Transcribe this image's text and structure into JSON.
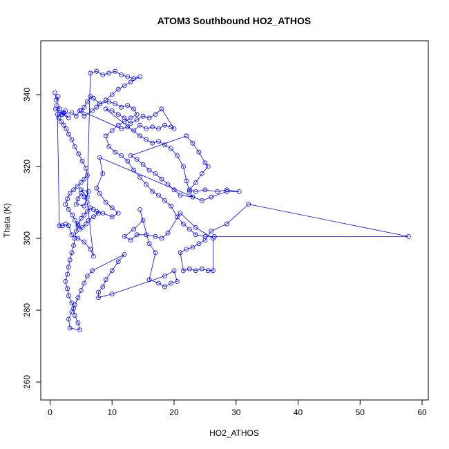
{
  "chart_data": {
    "type": "scatter",
    "title": "ATOM3 Southbound HO2_ATHOS",
    "xlabel": "HO2_ATHOS",
    "ylabel": "Theta (K)",
    "xlim": [
      -1.5,
      61
    ],
    "ylim": [
      255,
      355
    ],
    "xticks": [
      0,
      10,
      20,
      30,
      40,
      50,
      60
    ],
    "yticks": [
      260,
      280,
      300,
      320,
      340
    ],
    "grid": false,
    "legend": "none",
    "point_style": "open-circle",
    "connect_points": true,
    "series": [
      {
        "color": "#0000ff",
        "points": [
          [
            0.8,
            340.5
          ],
          [
            1.0,
            338.5
          ],
          [
            1.3,
            339.5
          ],
          [
            1.1,
            337.0
          ],
          [
            1.6,
            336.0
          ],
          [
            0.9,
            336.0
          ],
          [
            1.5,
            335.0
          ],
          [
            2.5,
            335.5
          ],
          [
            2.0,
            334.5
          ],
          [
            3.0,
            333.5
          ],
          [
            2.2,
            335.0
          ],
          [
            1.8,
            334.5
          ],
          [
            3.5,
            335.0
          ],
          [
            4.2,
            334.0
          ],
          [
            4.8,
            335.5
          ],
          [
            5.5,
            334.0
          ],
          [
            6.8,
            335.5
          ],
          [
            7.5,
            336.5
          ],
          [
            8.0,
            337.5
          ],
          [
            9.5,
            338.0
          ],
          [
            10.5,
            337.5
          ],
          [
            11.5,
            336.5
          ],
          [
            12.5,
            337.0
          ],
          [
            13.5,
            336.0
          ],
          [
            14.0,
            334.5
          ],
          [
            13.0,
            333.5
          ],
          [
            12.0,
            332.5
          ],
          [
            11.0,
            331.5
          ],
          [
            10.0,
            330.0
          ],
          [
            9.0,
            328.5
          ],
          [
            9.5,
            325.5
          ],
          [
            10.5,
            324.0
          ],
          [
            11.5,
            323.0
          ],
          [
            12.5,
            321.5
          ],
          [
            13.5,
            319.0
          ],
          [
            14.5,
            317.0
          ],
          [
            15.5,
            315.0
          ],
          [
            16.5,
            313.0
          ],
          [
            17.5,
            312.0
          ],
          [
            18.5,
            310.5
          ],
          [
            19.5,
            309.0
          ],
          [
            20.5,
            306.0
          ],
          [
            21.5,
            304.0
          ],
          [
            22.5,
            302.5
          ],
          [
            23.5,
            301.0
          ],
          [
            25.0,
            300.5
          ],
          [
            26.5,
            300.5
          ],
          [
            57.8,
            300.5
          ],
          [
            32.0,
            309.5
          ],
          [
            28.5,
            304.0
          ],
          [
            26.0,
            302.0
          ],
          [
            25.0,
            299.5
          ],
          [
            24.0,
            298.5
          ],
          [
            23.0,
            297.5
          ],
          [
            22.0,
            297.0
          ],
          [
            21.0,
            296.0
          ],
          [
            21.5,
            291.0
          ],
          [
            22.5,
            291.5
          ],
          [
            23.5,
            291.0
          ],
          [
            24.5,
            291.5
          ],
          [
            25.5,
            291.0
          ],
          [
            26.3,
            291.0
          ],
          [
            26.3,
            300.0
          ],
          [
            23.5,
            303.0
          ],
          [
            21.0,
            307.0
          ],
          [
            19.0,
            301.5
          ],
          [
            18.0,
            300.0
          ],
          [
            17.0,
            300.5
          ],
          [
            15.5,
            301.0
          ],
          [
            14.0,
            301.0
          ],
          [
            13.0,
            299.5
          ],
          [
            12.0,
            300.5
          ],
          [
            13.5,
            302.5
          ],
          [
            15.0,
            305.0
          ],
          [
            14.5,
            308.0
          ],
          [
            16.0,
            298.5
          ],
          [
            17.0,
            296.0
          ],
          [
            16.0,
            288.5
          ],
          [
            17.5,
            287.5
          ],
          [
            18.5,
            286.5
          ],
          [
            19.5,
            287.5
          ],
          [
            20.5,
            288.0
          ],
          [
            20.0,
            291.0
          ],
          [
            18.5,
            289.5
          ],
          [
            10.0,
            284.5
          ],
          [
            7.8,
            283.5
          ],
          [
            7.8,
            285.0
          ],
          [
            8.5,
            286.5
          ],
          [
            9.0,
            288.5
          ],
          [
            10.0,
            291.0
          ],
          [
            11.0,
            293.5
          ],
          [
            12.0,
            295.5
          ],
          [
            6.8,
            291.0
          ],
          [
            6.0,
            289.5
          ],
          [
            5.5,
            287.5
          ],
          [
            5.0,
            285.5
          ],
          [
            4.5,
            283.5
          ],
          [
            4.0,
            281.5
          ],
          [
            3.5,
            279.5
          ],
          [
            3.0,
            277.5
          ],
          [
            3.2,
            275.0
          ],
          [
            4.8,
            274.5
          ],
          [
            4.5,
            276.5
          ],
          [
            4.0,
            278.5
          ],
          [
            3.8,
            280.5
          ],
          [
            3.5,
            282.0
          ],
          [
            3.0,
            284.0
          ],
          [
            2.8,
            286.0
          ],
          [
            2.5,
            288.0
          ],
          [
            2.8,
            290.0
          ],
          [
            3.0,
            292.0
          ],
          [
            3.2,
            294.0
          ],
          [
            3.5,
            296.0
          ],
          [
            3.8,
            298.0
          ],
          [
            4.0,
            300.0
          ],
          [
            4.2,
            302.0
          ],
          [
            4.5,
            304.0
          ],
          [
            5.0,
            305.5
          ],
          [
            5.5,
            306.5
          ],
          [
            6.0,
            307.5
          ],
          [
            6.5,
            308.5
          ],
          [
            7.0,
            308.0
          ],
          [
            7.8,
            307.0
          ],
          [
            7.0,
            306.0
          ],
          [
            6.2,
            305.0
          ],
          [
            5.8,
            304.0
          ],
          [
            5.2,
            303.0
          ],
          [
            4.8,
            302.5
          ],
          [
            4.5,
            303.5
          ],
          [
            4.0,
            305.0
          ],
          [
            3.6,
            306.5
          ],
          [
            3.0,
            308.0
          ],
          [
            2.5,
            309.5
          ],
          [
            2.8,
            311.0
          ],
          [
            3.2,
            312.5
          ],
          [
            3.8,
            313.5
          ],
          [
            4.4,
            314.5
          ],
          [
            5.0,
            315.5
          ],
          [
            5.5,
            316.5
          ],
          [
            6.0,
            317.5
          ],
          [
            5.8,
            319.5
          ],
          [
            5.2,
            321.5
          ],
          [
            4.6,
            323.5
          ],
          [
            4.0,
            325.5
          ],
          [
            3.5,
            327.5
          ],
          [
            3.0,
            329.0
          ],
          [
            2.6,
            330.5
          ],
          [
            2.2,
            331.5
          ],
          [
            1.8,
            332.5
          ],
          [
            1.4,
            333.5
          ],
          [
            1.2,
            334.5
          ],
          [
            1.5,
            303.5
          ],
          [
            2.0,
            303.5
          ],
          [
            2.5,
            304.0
          ],
          [
            3.0,
            303.5
          ],
          [
            3.5,
            301.0
          ],
          [
            4.5,
            300.0
          ],
          [
            5.5,
            299.0
          ],
          [
            6.5,
            297.0
          ],
          [
            7.0,
            295.0
          ],
          [
            6.0,
            310.0
          ],
          [
            5.5,
            311.5
          ],
          [
            5.0,
            312.5
          ],
          [
            4.5,
            311.0
          ],
          [
            4.2,
            309.5
          ],
          [
            5.5,
            309.0
          ],
          [
            6.2,
            313.0
          ],
          [
            5.0,
            313.5
          ],
          [
            6.0,
            311.5
          ],
          [
            6.5,
            346.0
          ],
          [
            7.5,
            346.5
          ],
          [
            8.5,
            345.5
          ],
          [
            9.5,
            346.0
          ],
          [
            10.5,
            346.5
          ],
          [
            11.5,
            345.5
          ],
          [
            12.5,
            345.0
          ],
          [
            13.5,
            344.5
          ],
          [
            14.5,
            345.0
          ],
          [
            13.0,
            343.5
          ],
          [
            12.0,
            342.5
          ],
          [
            11.0,
            341.5
          ],
          [
            10.0,
            340.0
          ],
          [
            9.0,
            338.5
          ],
          [
            8.0,
            337.5
          ],
          [
            7.0,
            339.0
          ],
          [
            6.5,
            339.5
          ],
          [
            6.0,
            338.0
          ],
          [
            5.5,
            336.5
          ],
          [
            5.0,
            335.5
          ],
          [
            11.5,
            330.5
          ],
          [
            12.5,
            331.0
          ],
          [
            13.5,
            330.0
          ],
          [
            14.5,
            331.5
          ],
          [
            15.5,
            330.5
          ],
          [
            16.5,
            331.0
          ],
          [
            17.5,
            330.5
          ],
          [
            18.5,
            331.5
          ],
          [
            19.5,
            331.0
          ],
          [
            20.0,
            330.5
          ],
          [
            18.0,
            336.0
          ],
          [
            17.0,
            334.5
          ],
          [
            16.0,
            333.5
          ],
          [
            15.0,
            334.0
          ],
          [
            14.0,
            333.0
          ],
          [
            13.0,
            332.0
          ],
          [
            12.0,
            333.5
          ],
          [
            11.0,
            334.5
          ],
          [
            10.0,
            335.5
          ],
          [
            9.0,
            336.0
          ],
          [
            14.5,
            328.5
          ],
          [
            15.5,
            327.5
          ],
          [
            16.5,
            326.5
          ],
          [
            17.5,
            327.0
          ],
          [
            18.5,
            326.0
          ],
          [
            19.5,
            325.0
          ],
          [
            20.5,
            323.0
          ],
          [
            21.5,
            320.0
          ],
          [
            22.0,
            316.0
          ],
          [
            22.5,
            313.0
          ],
          [
            23.0,
            311.5
          ],
          [
            21.0,
            312.0
          ],
          [
            20.0,
            313.5
          ],
          [
            19.0,
            315.0
          ],
          [
            18.0,
            316.5
          ],
          [
            17.0,
            318.0
          ],
          [
            16.0,
            319.0
          ],
          [
            15.0,
            320.5
          ],
          [
            14.0,
            322.0
          ],
          [
            13.0,
            323.0
          ],
          [
            22.0,
            328.5
          ],
          [
            23.0,
            326.5
          ],
          [
            24.0,
            324.0
          ],
          [
            25.0,
            321.0
          ],
          [
            25.5,
            320.0
          ],
          [
            24.5,
            318.0
          ],
          [
            23.5,
            315.5
          ],
          [
            22.5,
            313.5
          ],
          [
            23.5,
            313.0
          ],
          [
            25.0,
            313.5
          ],
          [
            27.0,
            313.0
          ],
          [
            28.5,
            313.5
          ],
          [
            30.5,
            313.0
          ],
          [
            28.5,
            313.0
          ],
          [
            26.0,
            311.5
          ],
          [
            24.5,
            310.5
          ],
          [
            8.0,
            322.5
          ],
          [
            8.5,
            318.0
          ],
          [
            7.5,
            314.0
          ],
          [
            8.0,
            312.5
          ],
          [
            9.0,
            310.0
          ],
          [
            10.0,
            308.5
          ],
          [
            11.0,
            307.0
          ],
          [
            10.0,
            306.0
          ],
          [
            8.5,
            307.0
          ],
          [
            7.5,
            307.5
          ]
        ]
      }
    ]
  }
}
